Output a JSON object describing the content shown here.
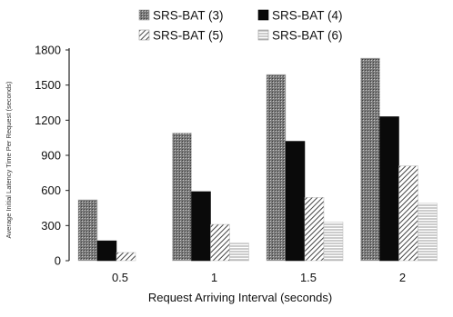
{
  "chart_data": {
    "type": "bar",
    "title": "",
    "xlabel": "Request Arriving Interval (seconds)",
    "ylabel": "Average Initial Latency Time Per Request (seconds)",
    "categories": [
      "0.5",
      "1",
      "1.5",
      "2"
    ],
    "ylim": [
      0,
      1800
    ],
    "yticks": [
      "0",
      "300",
      "600",
      "900",
      "1200",
      "1500",
      "1800"
    ],
    "grid": false,
    "legend_position": "top",
    "series": [
      {
        "name": "SRS-BAT (3)",
        "values": [
          520,
          1090,
          1590,
          1730
        ],
        "pattern": "dotted-dark",
        "color": "#6a6a6a"
      },
      {
        "name": "SRS-BAT (4)",
        "values": [
          170,
          590,
          1020,
          1230
        ],
        "pattern": "solid",
        "color": "#0a0a0a"
      },
      {
        "name": "SRS-BAT (5)",
        "values": [
          70,
          310,
          540,
          810
        ],
        "pattern": "diagonal-hatch",
        "color": "#555555"
      },
      {
        "name": "SRS-BAT (6)",
        "values": [
          0,
          150,
          330,
          490
        ],
        "pattern": "horizontal-lines",
        "color": "#888888"
      }
    ]
  }
}
